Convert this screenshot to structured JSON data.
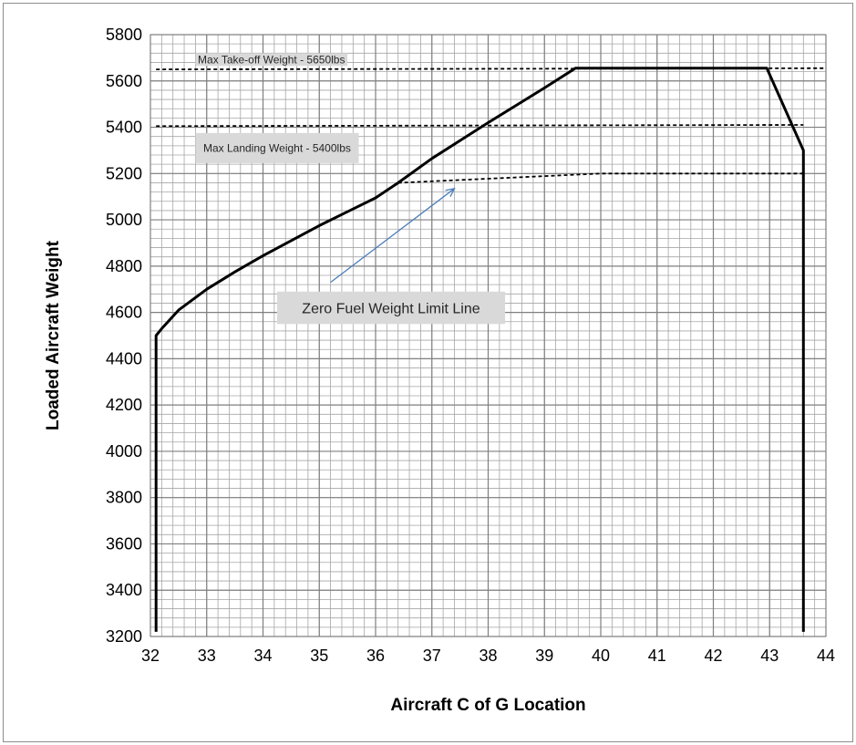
{
  "chart_data": {
    "type": "line",
    "title": "",
    "xlabel": "Aircraft C of G Location",
    "ylabel": "Loaded Aircraft Weight",
    "xlim": [
      32,
      44
    ],
    "ylim": [
      3200,
      5800
    ],
    "x_ticks": [
      32,
      33,
      34,
      35,
      36,
      37,
      38,
      39,
      40,
      41,
      42,
      43,
      44
    ],
    "y_ticks": [
      3200,
      3400,
      3600,
      3800,
      4000,
      4200,
      4400,
      4600,
      4800,
      5000,
      5200,
      5400,
      5600,
      5800
    ],
    "grid": true,
    "grid_minor_step_x": 0.2,
    "grid_minor_step_y": 40,
    "series": [
      {
        "style": "solid",
        "color": "#000000",
        "points": [
          [
            32.1,
            3220
          ],
          [
            32.1,
            4500
          ],
          [
            32.2,
            4530
          ],
          [
            32.5,
            4610
          ],
          [
            33.0,
            4700
          ],
          [
            33.5,
            4775
          ],
          [
            34.0,
            4845
          ],
          [
            34.5,
            4910
          ],
          [
            35.0,
            4975
          ],
          [
            35.5,
            5035
          ],
          [
            36.0,
            5095
          ],
          [
            36.4,
            5160
          ],
          [
            37.0,
            5265
          ],
          [
            38.0,
            5420
          ],
          [
            39.0,
            5570
          ],
          [
            39.55,
            5655
          ],
          [
            42.95,
            5655
          ],
          [
            43.6,
            5300
          ],
          [
            43.6,
            3220
          ]
        ]
      },
      {
        "style": "dashed",
        "color": "#000000",
        "points": [
          [
            32.1,
            5650
          ],
          [
            44.0,
            5655
          ]
        ]
      },
      {
        "style": "dashed",
        "color": "#000000",
        "points": [
          [
            32.1,
            5405
          ],
          [
            43.6,
            5410
          ]
        ]
      },
      {
        "style": "dashed",
        "color": "#000000",
        "points": [
          [
            36.4,
            5160
          ],
          [
            40.0,
            5200
          ],
          [
            43.6,
            5200
          ]
        ]
      }
    ],
    "annotations": [
      {
        "text": "Max Take-off Weight - 5650lbs",
        "x": 34.2,
        "y": 5690,
        "box_x": [
          32.8,
          35.5
        ],
        "box_y": [
          5665,
          5720
        ],
        "size": "small"
      },
      {
        "text": "Max Landing Weight - 5400lbs",
        "x": 34.2,
        "y": 5310,
        "box_x": [
          32.8,
          35.7
        ],
        "box_y": [
          5245,
          5375
        ],
        "size": "small"
      },
      {
        "text": "Zero Fuel Weight Limit Line",
        "x": 36.3,
        "y": 4620,
        "box_x": [
          34.25,
          38.3
        ],
        "box_y": [
          4550,
          4690
        ],
        "size": "large"
      }
    ],
    "arrow": {
      "from": [
        35.2,
        4730
      ],
      "to": [
        37.4,
        5135
      ],
      "color": "#4a7ebb"
    }
  }
}
